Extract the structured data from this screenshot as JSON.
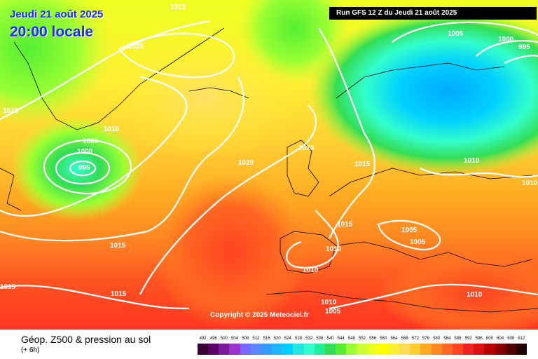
{
  "header": {
    "date": "Jeudi 21 août 2025",
    "local_time": "20:00 locale",
    "run": "Run GFS 12 Z du Jeudi 21 août 2025"
  },
  "map": {
    "projection": "North Atlantic / Europe",
    "isobar_labels": [
      {
        "text": "1015",
        "area": "top center"
      },
      {
        "text": "1025",
        "area": "over Greenland sea"
      },
      {
        "text": "1020",
        "area": "west edge"
      },
      {
        "text": "1010",
        "area": "south of Greenland"
      },
      {
        "text": "1005",
        "area": "low center ring"
      },
      {
        "text": "1000",
        "area": "low center ring"
      },
      {
        "text": "995",
        "area": "low center"
      },
      {
        "text": "1020",
        "area": "mid Atlantic"
      },
      {
        "text": "1015",
        "area": "central Atlantic"
      },
      {
        "text": "1015",
        "area": "west edge south"
      },
      {
        "text": "1015",
        "area": "south Atlantic"
      },
      {
        "text": "1020",
        "area": "British Isles"
      },
      {
        "text": "1015",
        "area": "North Sea"
      },
      {
        "text": "1015",
        "area": "France"
      },
      {
        "text": "1010",
        "area": "Spain north"
      },
      {
        "text": "1010",
        "area": "Spain south"
      },
      {
        "text": "1010",
        "area": "Mediterranean"
      },
      {
        "text": "1005",
        "area": "Mediterranean"
      },
      {
        "text": "1005",
        "area": "Alps"
      },
      {
        "text": "1005",
        "area": "Balkans"
      },
      {
        "text": "1010",
        "area": "Baltic"
      },
      {
        "text": "1010",
        "area": "east edge"
      },
      {
        "text": "1010",
        "area": "south east"
      },
      {
        "text": "1005",
        "area": "Scandinavia north"
      },
      {
        "text": "1000",
        "area": "Scandinavia low"
      },
      {
        "text": "995",
        "area": "Scandinavia low center"
      }
    ],
    "copyright": "Copyright © 2025 Meteociel.fr"
  },
  "legend": {
    "title": "Géop. Z500 & pression au sol",
    "subtitle": "(+ 6h)",
    "scale_values": [
      "492",
      "496",
      "500",
      "504",
      "508",
      "512",
      "516",
      "520",
      "524",
      "528",
      "532",
      "536",
      "540",
      "544",
      "548",
      "552",
      "556",
      "560",
      "564",
      "568",
      "572",
      "576",
      "580",
      "584",
      "588",
      "592",
      "596",
      "600",
      "604",
      "608",
      "612"
    ],
    "scale_colors": [
      "#3a0033",
      "#5a0066",
      "#7a1a99",
      "#9933cc",
      "#7a66ff",
      "#5a88ff",
      "#3399ff",
      "#22b5ff",
      "#00d0ff",
      "#22e5e0",
      "#33ffcc",
      "#22ee99",
      "#33dd55",
      "#55ee33",
      "#99ff33",
      "#ccff33",
      "#eeff22",
      "#ffff00",
      "#ffee33",
      "#ffdd55",
      "#ffcc33",
      "#ffaa22",
      "#ff8822",
      "#ff6622",
      "#ff4422",
      "#ee2222",
      "#dd1111",
      "#bb0000",
      "#880000",
      "#550000",
      "#220000"
    ]
  }
}
